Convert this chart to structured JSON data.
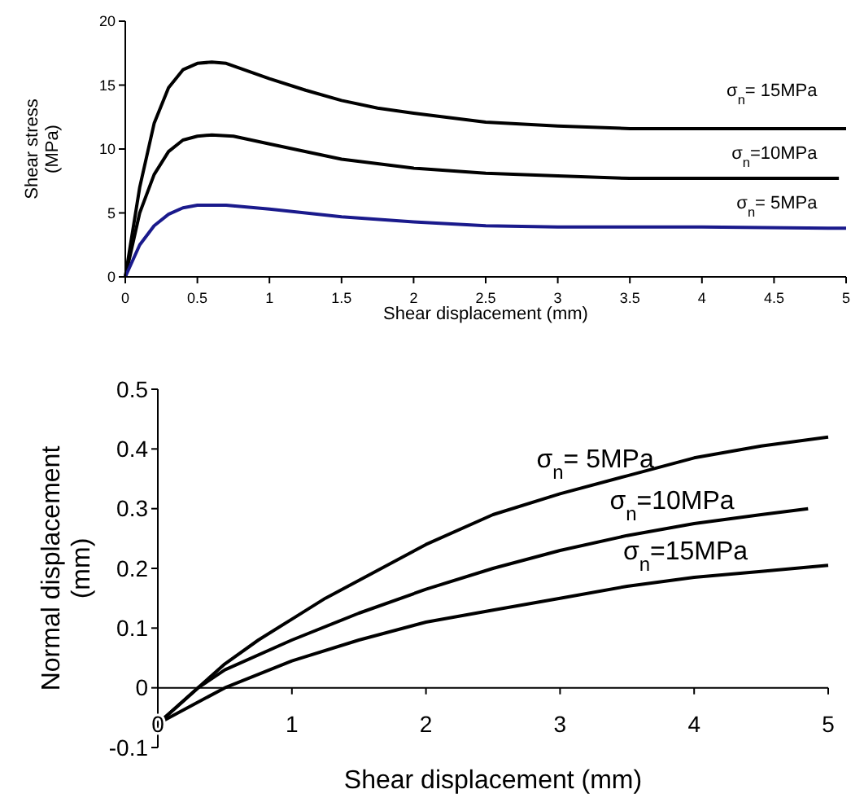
{
  "chart_data": [
    {
      "type": "line",
      "xlabel": "Shear displacement (mm)",
      "ylabel": "Shear stress (MPa)",
      "xlim": [
        0,
        5
      ],
      "xticks": [
        0,
        0.5,
        1,
        1.5,
        2,
        2.5,
        3,
        3.5,
        4,
        4.5,
        5
      ],
      "ylim": [
        0,
        20
      ],
      "yticks": [
        0,
        5,
        10,
        15,
        20
      ],
      "grid": false,
      "marker": "none",
      "line_style": "solid",
      "series": [
        {
          "name": "σ$_{n}$= 15MPa",
          "color": "#000000",
          "x": [
            0,
            0.1,
            0.2,
            0.3,
            0.4,
            0.5,
            0.6,
            0.7,
            0.8,
            1,
            1.25,
            1.5,
            1.75,
            2,
            2.5,
            3,
            3.5,
            4,
            4.5,
            5
          ],
          "values": [
            0,
            7,
            12,
            14.8,
            16.2,
            16.7,
            16.8,
            16.7,
            16.3,
            15.5,
            14.6,
            13.8,
            13.2,
            12.8,
            12.1,
            11.8,
            11.6,
            11.6,
            11.6,
            11.6
          ]
        },
        {
          "name": "σ$_{n}$=10MPa",
          "color": "#000000",
          "x": [
            0,
            0.1,
            0.2,
            0.3,
            0.4,
            0.5,
            0.6,
            0.75,
            1,
            1.5,
            2,
            2.5,
            3,
            3.5,
            4,
            4.5,
            4.95
          ],
          "values": [
            0,
            5,
            8,
            9.8,
            10.7,
            11,
            11.1,
            11,
            10.4,
            9.2,
            8.5,
            8.1,
            7.9,
            7.7,
            7.7,
            7.7,
            7.7
          ]
        },
        {
          "name": "σ$_{n}$= 5MPa",
          "color": "#1a1a8c",
          "x": [
            0,
            0.1,
            0.2,
            0.3,
            0.4,
            0.5,
            0.7,
            1,
            1.5,
            2,
            2.5,
            3,
            4,
            5
          ],
          "values": [
            0,
            2.5,
            4,
            4.9,
            5.4,
            5.6,
            5.6,
            5.3,
            4.7,
            4.3,
            4,
            3.9,
            3.9,
            3.8
          ]
        }
      ]
    },
    {
      "type": "line",
      "xlabel": "Shear displacement (mm)",
      "ylabel": "Normal displacement (mm)",
      "xlim": [
        0,
        5
      ],
      "xticks": [
        0,
        1,
        2,
        3,
        4,
        5
      ],
      "ylim": [
        -0.1,
        0.5
      ],
      "yticks": [
        -0.1,
        0,
        0.1,
        0.2,
        0.3,
        0.4,
        0.5
      ],
      "grid": false,
      "marker": "none",
      "line_style": "solid",
      "series": [
        {
          "name": "σ$_{n}$= 5MPa",
          "color": "#000000",
          "x": [
            0,
            0.25,
            0.5,
            0.75,
            1,
            1.25,
            1.5,
            2,
            2.5,
            3,
            3.5,
            4,
            4.5,
            5
          ],
          "values": [
            -0.06,
            -0.01,
            0.04,
            0.08,
            0.115,
            0.15,
            0.18,
            0.24,
            0.29,
            0.325,
            0.355,
            0.385,
            0.405,
            0.42
          ]
        },
        {
          "name": "σ$_{n}$=10MPa",
          "color": "#000000",
          "x": [
            0,
            0.3,
            0.5,
            1,
            1.5,
            2,
            2.5,
            3,
            3.5,
            4,
            4.5,
            4.85
          ],
          "values": [
            -0.06,
            0,
            0.03,
            0.08,
            0.125,
            0.165,
            0.2,
            0.23,
            0.255,
            0.275,
            0.29,
            0.3
          ]
        },
        {
          "name": "σ$_{n}$=15MPa",
          "color": "#000000",
          "x": [
            0,
            0.5,
            1,
            1.5,
            2,
            2.5,
            3,
            3.5,
            4,
            4.5,
            5
          ],
          "values": [
            -0.06,
            0,
            0.045,
            0.08,
            0.11,
            0.13,
            0.15,
            0.17,
            0.185,
            0.195,
            0.205
          ]
        }
      ]
    }
  ]
}
